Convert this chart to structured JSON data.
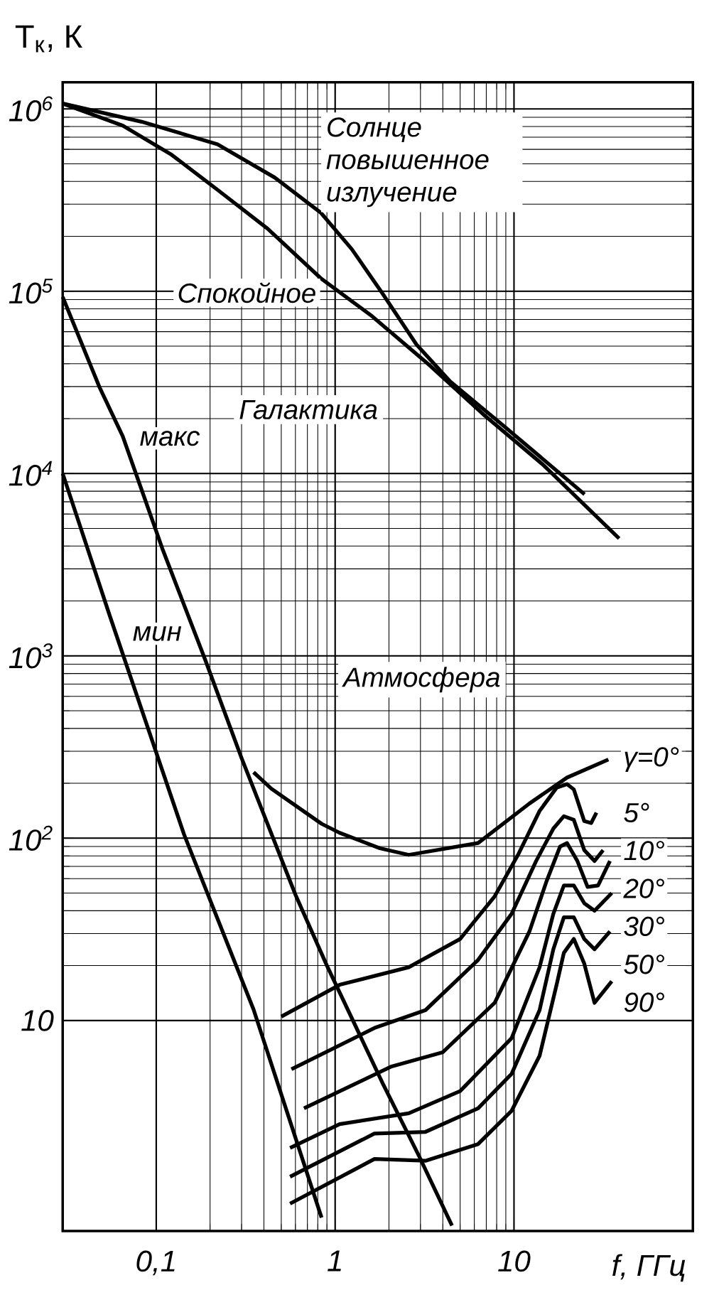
{
  "chart_data": {
    "type": "line",
    "xlabel": "f, ГГц",
    "ylabel": "T$_{к}$, К",
    "annotations": [
      "Солнце",
      "Галактика",
      "Атмосфера"
    ],
    "log": "xy",
    "grid": true,
    "legend": "right",
    "xlim": [
      0.03,
      100
    ],
    "ylim": [
      0.7,
      1400000
    ],
    "xticks": [
      {
        "value": 0.1,
        "label": "0,1"
      },
      1,
      10
    ],
    "yticks": [
      10,
      {
        "value": 100,
        "label": "10$^{2}$"
      },
      {
        "value": 1000,
        "label": "10$^{3}$"
      },
      {
        "value": 10000,
        "label": "10$^{4}$"
      },
      {
        "value": 100000,
        "label": "10$^{5}$"
      },
      {
        "value": 1000000,
        "label": "10$^{6}$"
      }
    ],
    "series": [
      {
        "name": "повышенное излучение",
        "color": "#000000",
        "x": [
          0.03,
          0.083,
          0.22,
          0.46,
          0.83,
          1.24,
          1.83,
          2.85,
          4.4,
          8.9,
          24.8
        ],
        "values": [
          1070000,
          850000,
          640000,
          420000,
          270000,
          170000,
          98000,
          51000,
          32000,
          18000,
          7700
        ]
      },
      {
        "name": "Спокойное",
        "color": "#000000",
        "x": [
          0.03,
          0.065,
          0.122,
          0.22,
          0.42,
          0.83,
          1.58,
          3.3,
          6.9,
          14.5,
          38.7
        ],
        "values": [
          1070000,
          810000,
          560000,
          360000,
          220000,
          118000,
          74000,
          40000,
          20700,
          11200,
          4400
        ]
      },
      {
        "name": "макс",
        "color": "#000000",
        "x": [
          0.03,
          0.048,
          0.065,
          0.109,
          0.188,
          0.3,
          0.6,
          0.9,
          1.85,
          2.95,
          4.5
        ],
        "values": [
          93000,
          30000,
          16000,
          3800,
          950,
          275,
          49,
          20,
          4.5,
          1.8,
          0.75
        ]
      },
      {
        "name": "мин",
        "color": "#000000",
        "x": [
          0.03,
          0.055,
          0.143,
          0.35,
          0.84
        ],
        "values": [
          10000,
          1660,
          105,
          11.5,
          0.83
        ]
      },
      {
        "name": "γ=0°",
        "color": "#000000",
        "x": [
          0.35,
          0.44,
          0.84,
          1.06,
          1.78,
          2.58,
          6.3,
          12.2,
          19.8,
          33.7
        ],
        "values": [
          230,
          187,
          120,
          107,
          88,
          81,
          94,
          155,
          215,
          270
        ]
      },
      {
        "name": "5°",
        "color": "#000000",
        "x": [
          0.5,
          1.06,
          2.58,
          5.0,
          7.8,
          10.6,
          13.9,
          17.3,
          19.8,
          21.6,
          24.7,
          27,
          28.9
        ],
        "values": [
          10.5,
          15.7,
          19.6,
          28,
          48,
          82,
          141,
          189,
          198,
          185,
          124,
          121,
          138
        ]
      },
      {
        "name": "10°",
        "color": "#000000",
        "x": [
          0.57,
          1.66,
          3.2,
          6.3,
          9.7,
          13.3,
          16.6,
          19.0,
          21.6,
          24.7,
          28.2,
          31.5
        ],
        "values": [
          5.4,
          9.1,
          11.4,
          21.5,
          38.5,
          75,
          113,
          132,
          126,
          86,
          75,
          86
        ]
      },
      {
        "name": "20°",
        "color": "#000000",
        "x": [
          0.67,
          2.07,
          4.0,
          7.8,
          12.2,
          15.2,
          18.1,
          19.8,
          22.6,
          25.8,
          29.5,
          34.4
        ],
        "values": [
          3.3,
          5.6,
          6.7,
          12.5,
          30.8,
          58,
          90,
          94,
          75,
          54,
          55,
          75
        ]
      },
      {
        "name": "30°",
        "color": "#000000",
        "x": [
          0.56,
          1.06,
          2.58,
          5.0,
          9.7,
          13.9,
          16.6,
          19.0,
          21.6,
          24.7,
          28.2,
          35.2
        ],
        "values": [
          2.0,
          2.7,
          3.1,
          4.1,
          8.0,
          19.6,
          38.5,
          55,
          55,
          44,
          40,
          50
        ]
      },
      {
        "name": "50°",
        "color": "#000000",
        "x": [
          0.56,
          1.66,
          3.2,
          6.3,
          9.7,
          13.9,
          16.6,
          19.0,
          21.6,
          24.7,
          28.2,
          34.4
        ],
        "values": [
          1.39,
          2.4,
          2.45,
          3.3,
          5.1,
          11.4,
          24.6,
          36.8,
          36.8,
          28,
          24.6,
          30.8
        ]
      },
      {
        "name": "90°",
        "color": "#000000",
        "x": [
          0.56,
          1.66,
          3.2,
          6.3,
          9.7,
          13.9,
          17.3,
          19.0,
          21.6,
          24.7,
          28.2,
          35.2
        ],
        "values": [
          0.99,
          1.74,
          1.7,
          2.1,
          3.2,
          6.4,
          15.7,
          23.5,
          28,
          20.5,
          12.5,
          16.4
        ]
      }
    ]
  }
}
